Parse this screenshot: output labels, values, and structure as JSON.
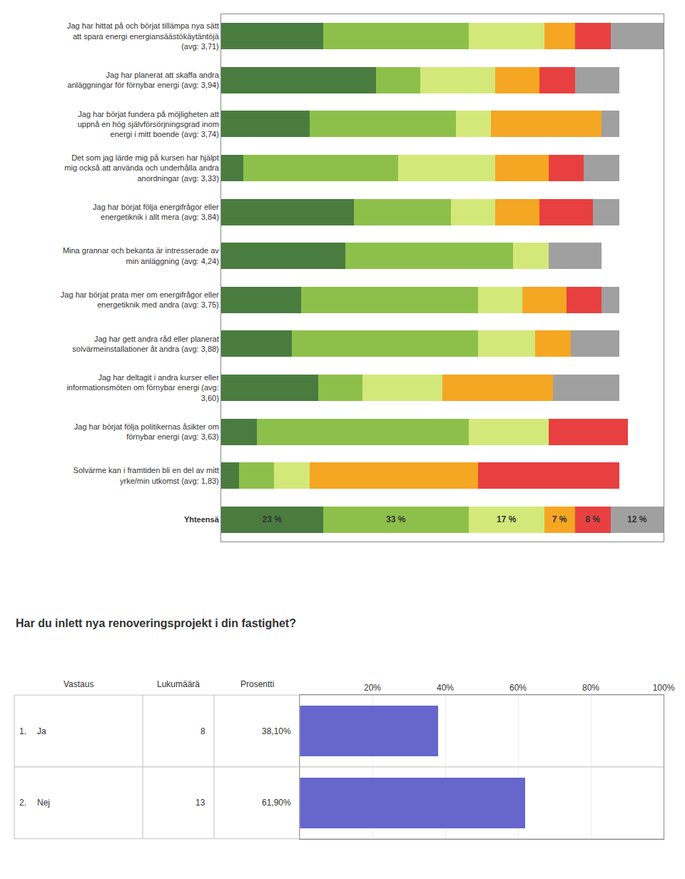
{
  "chart_data": [
    {
      "type": "bar",
      "orientation": "horizontal",
      "stacked": true,
      "categories": [
        "Jag har hittat på och börjat tillämpa nya sätt\natt spara energi energiansäästökäytäntöjä\n(avg: 3,71)",
        "Jag har planerat att skaffa andra\nanläggningar för förnybar energi (avg: 3,94)",
        "Jag har börjat fundera på möjligheten att\nuppnå en hög självförsörjningsgrad inom\nenergi i mitt boende (avg: 3,74)",
        "Det som jag lärde mig på kursen har hjälpt\nmig också att använda och underhålla andra\nanordningar (avg: 3,33)",
        "Jag har börjat följa energifrågor eller\nenergetiknik i allt mera (avg: 3,84)",
        "Mina grannar och bekanta är intresserade av\nmin anläggning (avg: 4,24)",
        "Jag har börjat prata mer om energifrågor eller\nenergetiknik med andra (avg: 3,75)",
        "Jag har gett andra råd eller planerat\nsolvärmeinstallationer åt andra (avg: 3,88)",
        "Jag har deltagit i andra kurser eller\ninformationsmöten om förnybar energi (avg:\n3,60)",
        "Jag har börjat följa politikernas åsikter om\nförnybar energi (avg: 3,63)",
        "Solvärme kan i framtiden bli en del av mitt\nyrke/min utkomst (avg: 1,83)",
        "Yhteensä"
      ],
      "series": [
        {
          "color": "#4a7c40",
          "values": [
            23,
            35,
            20,
            5,
            30,
            28,
            18,
            16,
            22,
            8,
            4,
            23
          ],
          "value_labels": [
            null,
            null,
            null,
            null,
            null,
            null,
            null,
            null,
            null,
            null,
            null,
            "23 %"
          ]
        },
        {
          "color": "#8dc04a",
          "values": [
            33,
            10,
            33,
            35,
            22,
            38,
            40,
            42,
            10,
            48,
            8,
            33
          ],
          "value_labels": [
            null,
            null,
            null,
            null,
            null,
            null,
            null,
            null,
            null,
            null,
            null,
            "33 %"
          ]
        },
        {
          "color": "#d4e87a",
          "values": [
            17,
            17,
            8,
            22,
            10,
            8,
            10,
            13,
            18,
            18,
            8,
            17
          ],
          "value_labels": [
            null,
            null,
            null,
            null,
            null,
            null,
            null,
            null,
            null,
            null,
            null,
            "17 %"
          ]
        },
        {
          "color": "#f5a623",
          "values": [
            7,
            10,
            25,
            12,
            10,
            0,
            10,
            8,
            25,
            0,
            38,
            7
          ],
          "value_labels": [
            null,
            null,
            null,
            null,
            null,
            null,
            null,
            null,
            null,
            null,
            null,
            "7 %"
          ]
        },
        {
          "color": "#e84040",
          "values": [
            8,
            8,
            0,
            8,
            12,
            0,
            8,
            0,
            0,
            18,
            32,
            8
          ],
          "value_labels": [
            null,
            null,
            null,
            null,
            null,
            null,
            null,
            null,
            null,
            null,
            null,
            "8 %"
          ]
        },
        {
          "color": "#a0a0a0",
          "values": [
            12,
            10,
            4,
            8,
            6,
            12,
            4,
            11,
            15,
            0,
            0,
            12
          ],
          "value_labels": [
            null,
            null,
            null,
            null,
            null,
            null,
            null,
            null,
            null,
            null,
            null,
            "12 %"
          ]
        }
      ],
      "xlim": [
        0,
        100
      ],
      "tick_labels": false,
      "data_labels": true
    },
    {
      "type": "bar",
      "orientation": "horizontal",
      "title": "Har du inlett nya renoveringsprojekt i din fastighet?",
      "column_headers": [
        "Vastaus",
        "Lukumäärä",
        "Prosentti"
      ],
      "row_numbers": [
        "1.",
        "2."
      ],
      "categories": [
        "Ja",
        "Nej"
      ],
      "counts": [
        8,
        13
      ],
      "values": [
        38.1,
        61.9
      ],
      "value_labels": [
        "38,10%",
        "61,90%"
      ],
      "color": "#6666cc",
      "xlim": [
        0,
        100
      ],
      "xticks": [
        {
          "value": 20,
          "label": "20%"
        },
        {
          "value": 40,
          "label": "40%"
        },
        {
          "value": 60,
          "label": "60%"
        },
        {
          "value": 80,
          "label": "80%"
        },
        {
          "value": 100,
          "label": "100%"
        }
      ],
      "grid": true,
      "tick_labels": "x"
    }
  ]
}
